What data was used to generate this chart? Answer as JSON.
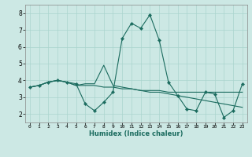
{
  "xlabel": "Humidex (Indice chaleur)",
  "bg_color": "#cce8e4",
  "line_color": "#1a6b5e",
  "grid_color": "#aad4ce",
  "xlim": [
    -0.5,
    23.5
  ],
  "ylim": [
    1.5,
    8.5
  ],
  "xticks": [
    0,
    1,
    2,
    3,
    4,
    5,
    6,
    7,
    8,
    9,
    10,
    11,
    12,
    13,
    14,
    15,
    16,
    17,
    18,
    19,
    20,
    21,
    22,
    23
  ],
  "yticks": [
    2,
    3,
    4,
    5,
    6,
    7,
    8
  ],
  "series1": [
    3.6,
    3.7,
    3.9,
    4.0,
    3.9,
    3.8,
    2.6,
    2.2,
    2.7,
    3.3,
    6.5,
    7.4,
    7.1,
    7.9,
    6.4,
    3.9,
    3.1,
    2.3,
    2.2,
    3.3,
    3.2,
    1.8,
    2.2,
    3.8
  ],
  "series2": [
    3.6,
    3.7,
    3.9,
    4.0,
    3.9,
    3.7,
    3.8,
    3.8,
    4.9,
    3.7,
    3.6,
    3.5,
    3.4,
    3.3,
    3.3,
    3.2,
    3.1,
    3.0,
    2.9,
    2.8,
    2.7,
    2.6,
    2.5,
    2.4
  ],
  "series3": [
    3.6,
    3.7,
    3.9,
    4.0,
    3.9,
    3.7,
    3.7,
    3.7,
    3.6,
    3.6,
    3.5,
    3.5,
    3.4,
    3.4,
    3.4,
    3.3,
    3.3,
    3.3,
    3.3,
    3.3,
    3.3,
    3.3,
    3.3,
    3.3
  ]
}
